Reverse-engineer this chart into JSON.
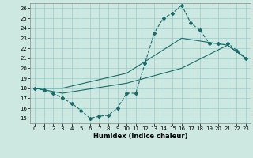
{
  "xlabel": "Humidex (Indice chaleur)",
  "xlim": [
    -0.5,
    23.5
  ],
  "ylim": [
    14.5,
    26.5
  ],
  "xticks": [
    0,
    1,
    2,
    3,
    4,
    5,
    6,
    7,
    8,
    9,
    10,
    11,
    12,
    13,
    14,
    15,
    16,
    17,
    18,
    19,
    20,
    21,
    22,
    23
  ],
  "yticks": [
    15,
    16,
    17,
    18,
    19,
    20,
    21,
    22,
    23,
    24,
    25,
    26
  ],
  "bg_color": "#cce8e0",
  "grid_color": "#99cccc",
  "line_color": "#1a6b6b",
  "line1_x": [
    0,
    1,
    2,
    3,
    4,
    5,
    6,
    7,
    8,
    9,
    10,
    11,
    12,
    13,
    14,
    15,
    16,
    17,
    18,
    19,
    20,
    21,
    22,
    23
  ],
  "line1_y": [
    18.0,
    17.8,
    17.5,
    17.0,
    16.5,
    15.8,
    15.0,
    15.2,
    15.3,
    16.0,
    17.5,
    17.5,
    20.5,
    23.5,
    25.0,
    25.5,
    26.3,
    24.5,
    23.8,
    22.5,
    22.5,
    22.5,
    21.8,
    21.0
  ],
  "line2_x": [
    0,
    3,
    10,
    16,
    21,
    23
  ],
  "line2_y": [
    18.0,
    17.5,
    18.5,
    20.0,
    22.3,
    21.0
  ],
  "line3_x": [
    0,
    3,
    10,
    16,
    21,
    23
  ],
  "line3_y": [
    18.0,
    18.0,
    19.5,
    23.0,
    22.3,
    21.0
  ],
  "figsize": [
    3.2,
    2.0
  ],
  "dpi": 100
}
